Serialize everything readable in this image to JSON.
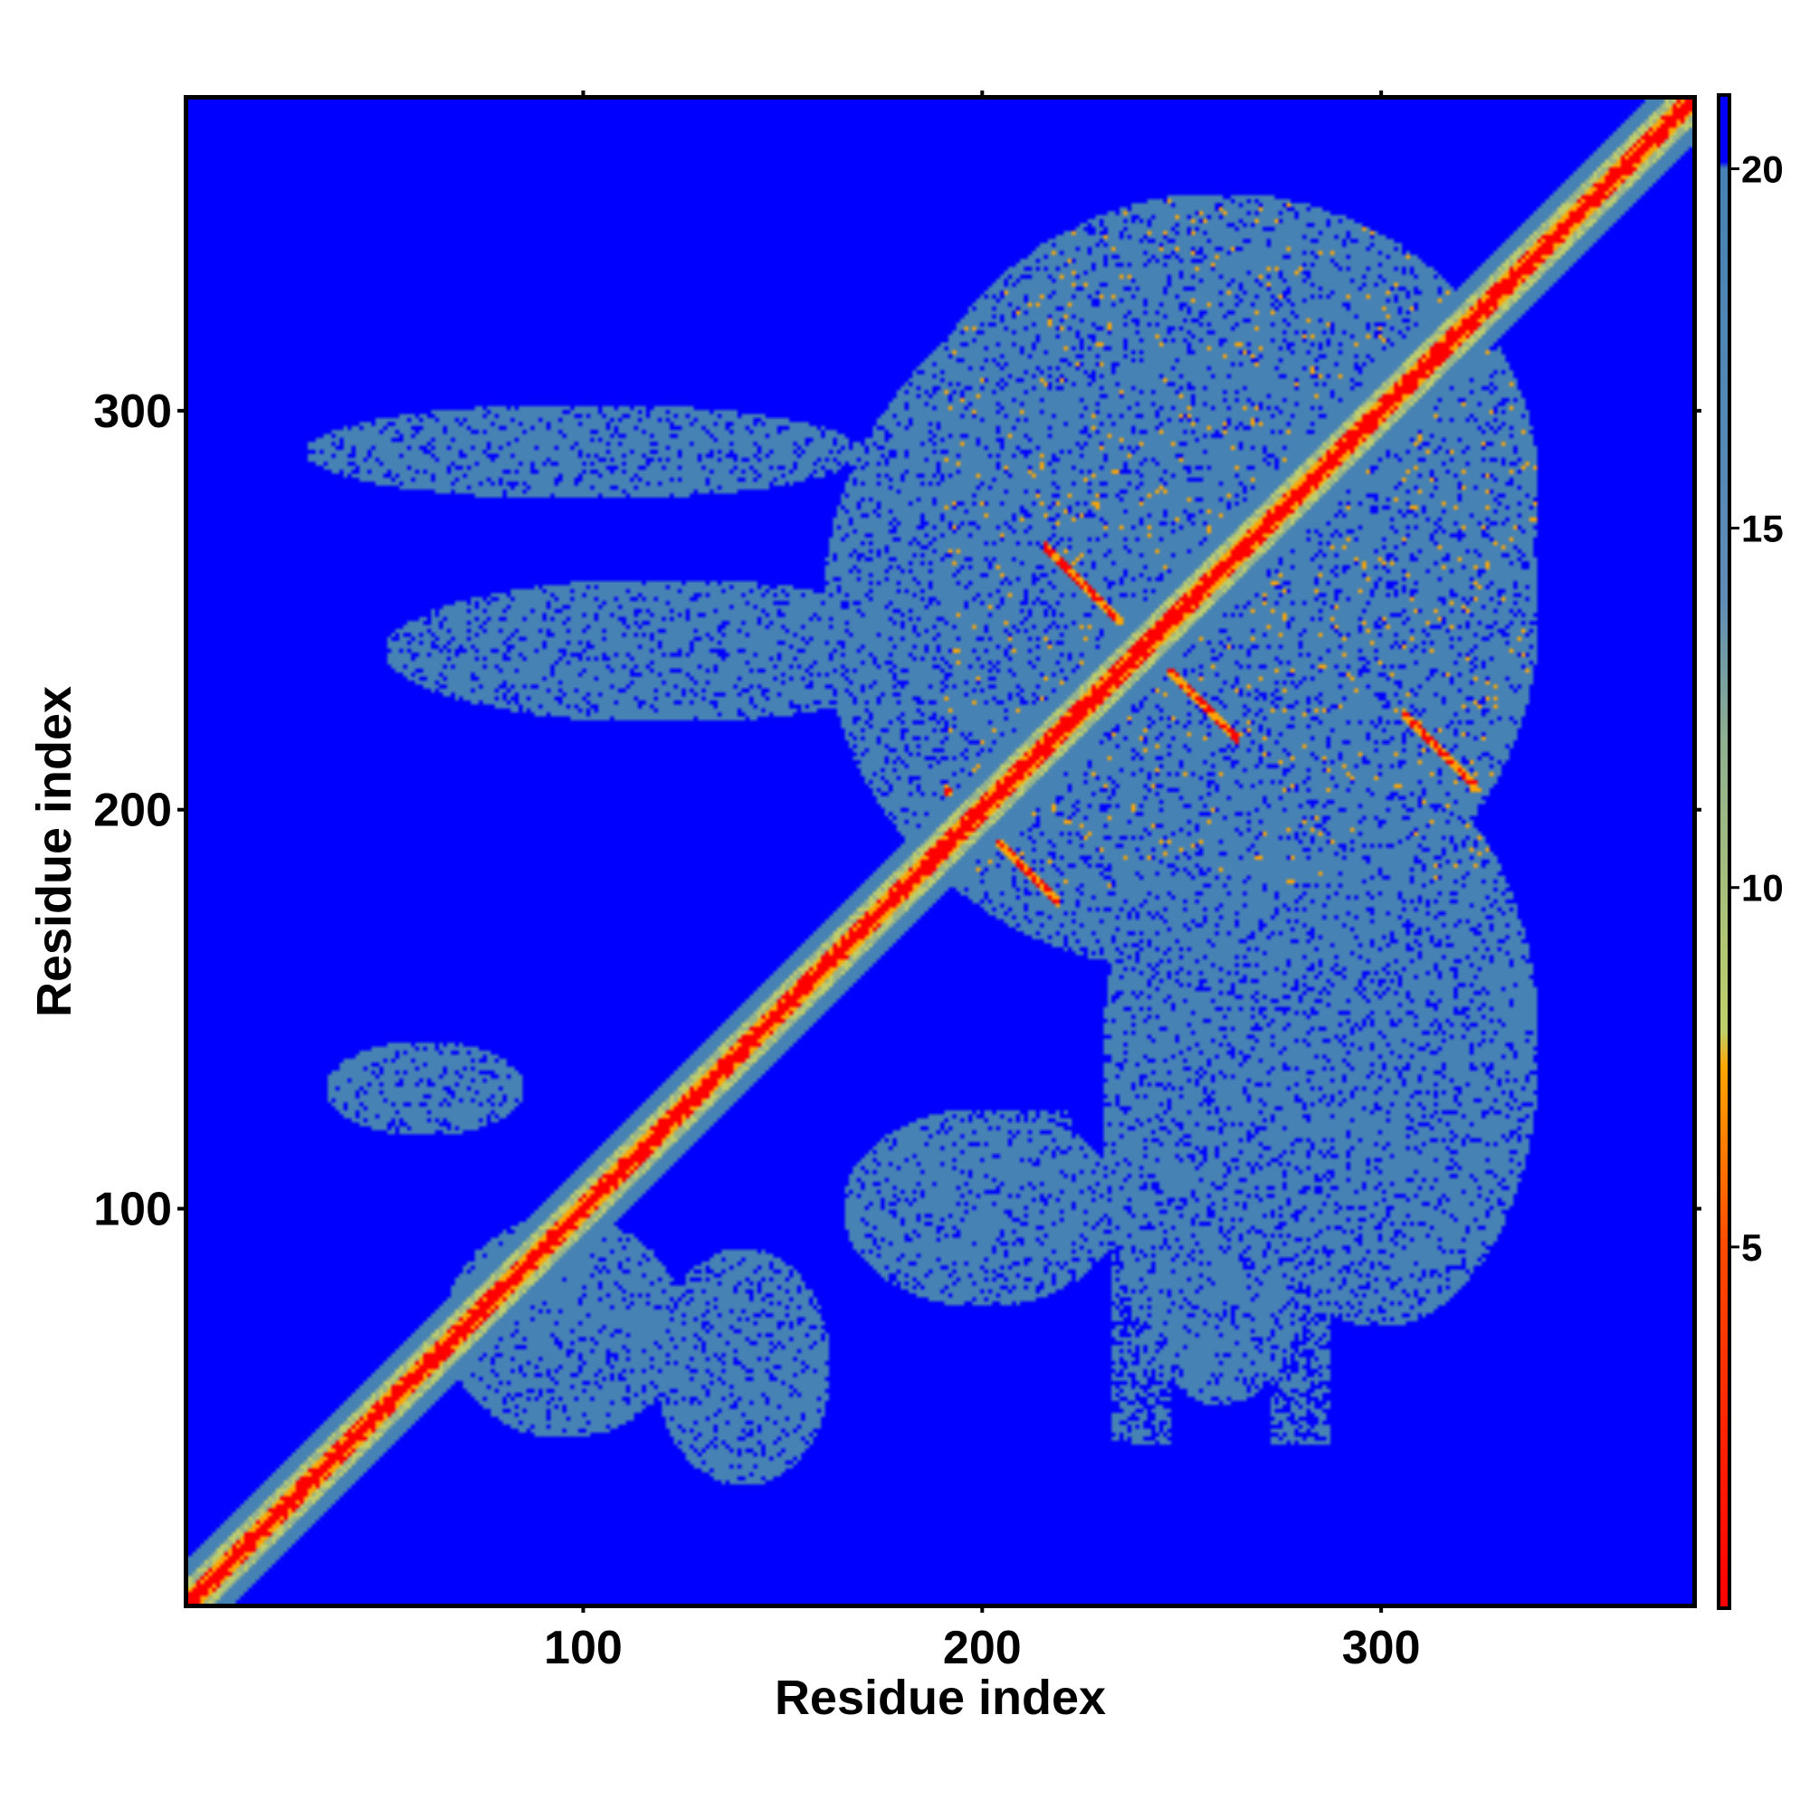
{
  "chart_data": {
    "type": "heatmap",
    "title": "",
    "xlabel": "Residue index",
    "ylabel": "Residue index",
    "n_residues": 378,
    "xlim": [
      1,
      378
    ],
    "ylim": [
      1,
      378
    ],
    "x_ticks": [
      "100",
      "200",
      "300"
    ],
    "y_ticks": [
      "100",
      "200",
      "300"
    ],
    "colorbar": {
      "range": [
        0,
        21
      ],
      "ticks": [
        "5",
        "10",
        "15",
        "20"
      ],
      "stops": [
        {
          "value": 0,
          "color": "#ff0000"
        },
        {
          "value": 5,
          "color": "#ff4a00"
        },
        {
          "value": 7.5,
          "color": "#ffa500"
        },
        {
          "value": 8,
          "color": "#bfcf6a"
        },
        {
          "value": 12,
          "color": "#8fb08f"
        },
        {
          "value": 14,
          "color": "#5f8cb5"
        },
        {
          "value": 20,
          "color": "#4682b4"
        },
        {
          "value": 20.1,
          "color": "#0000ff"
        },
        {
          "value": 21,
          "color": "#0000ff"
        }
      ]
    },
    "background_color": "#0000ff",
    "near_color": "#ff0000",
    "mid_color": "#ffa500",
    "far_color": "#4682b4",
    "grid": false,
    "legend": "colorbar-right"
  }
}
